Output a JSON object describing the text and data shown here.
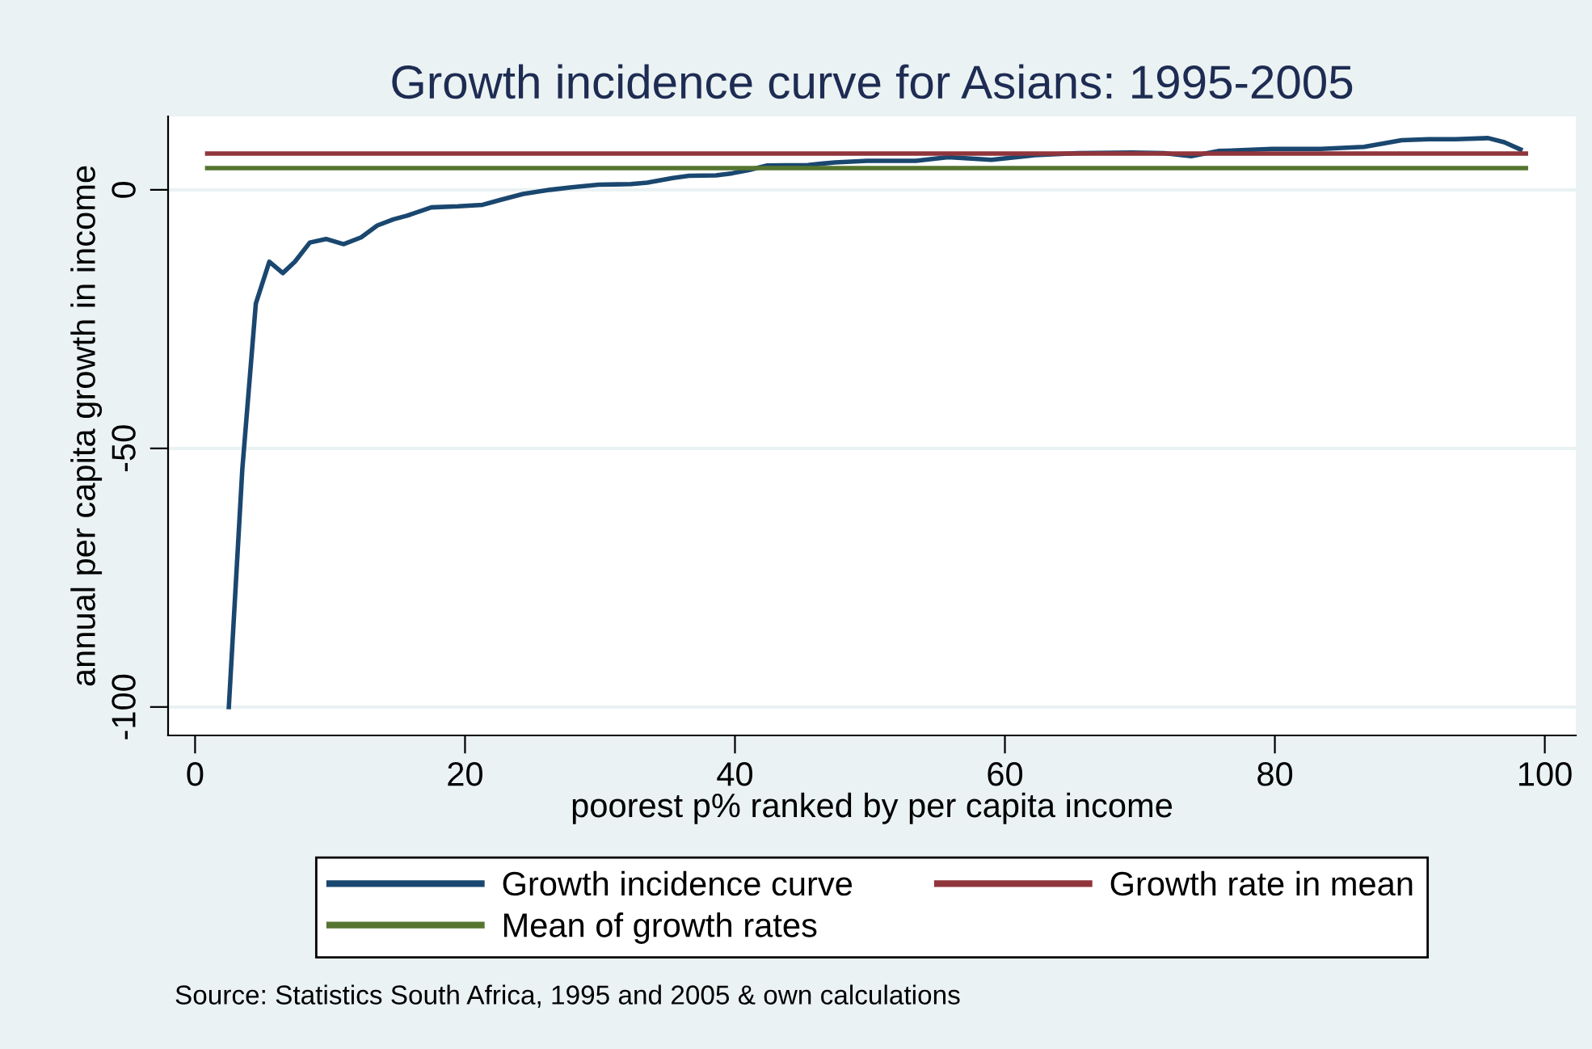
{
  "chart_data": {
    "type": "line",
    "title": "Growth incidence curve for Asians: 1995-2005",
    "xlabel": "poorest p% ranked by per capita income",
    "ylabel": "annual per capita growth in income",
    "xlim": [
      -2,
      102.3
    ],
    "ylim": [
      -105.5,
      14.2
    ],
    "xticks": [
      0,
      20,
      40,
      60,
      80,
      100
    ],
    "yticks": [
      -100,
      -50,
      0
    ],
    "grid": "y",
    "legend": "bottom",
    "series": [
      {
        "name": "Growth incidence curve",
        "color": "#1a476f",
        "x": [
          2.5,
          3.5,
          4.5,
          5.5,
          6.5,
          7.4,
          8.5,
          9.7,
          11.0,
          12.3,
          13.5,
          14.7,
          15.7,
          17.5,
          19.5,
          21.3,
          22.7,
          24.3,
          26.3,
          27.9,
          29.9,
          32.3,
          33.5,
          35.4,
          36.6,
          38.6,
          39.8,
          41.0,
          42.4,
          45.4,
          47.4,
          49.8,
          53.4,
          55.8,
          59.0,
          62.2,
          65.4,
          69.4,
          71.8,
          73.8,
          75.8,
          79.8,
          83.4,
          86.6,
          89.4,
          91.4,
          93.4,
          95.8,
          97.0,
          98.2
        ],
        "values": [
          -100,
          -54,
          -22,
          -13.9,
          -16.1,
          -13.9,
          -10.2,
          -9.5,
          -10.5,
          -9.2,
          -6.9,
          -5.7,
          -5.0,
          -3.4,
          -3.2,
          -2.9,
          -1.9,
          -0.8,
          0,
          0.5,
          1.0,
          1.1,
          1.4,
          2.3,
          2.7,
          2.8,
          3.2,
          3.8,
          4.7,
          4.8,
          5.3,
          5.6,
          5.6,
          6.3,
          5.8,
          6.7,
          7.1,
          7.2,
          7.1,
          6.5,
          7.5,
          7.9,
          7.9,
          8.3,
          9.6,
          9.8,
          9.8,
          10.0,
          9.2,
          7.8
        ]
      },
      {
        "name": "Growth rate in mean",
        "color": "#90353b",
        "x": [
          0.9,
          98.6
        ],
        "values": [
          7.0,
          7.0
        ]
      },
      {
        "name": "Mean of growth rates",
        "color": "#55752f",
        "x": [
          0.9,
          98.6
        ],
        "values": [
          4.2,
          4.2
        ]
      }
    ],
    "annotations": [
      "Source: Statistics South Africa, 1995 and 2005 & own calculations"
    ]
  }
}
